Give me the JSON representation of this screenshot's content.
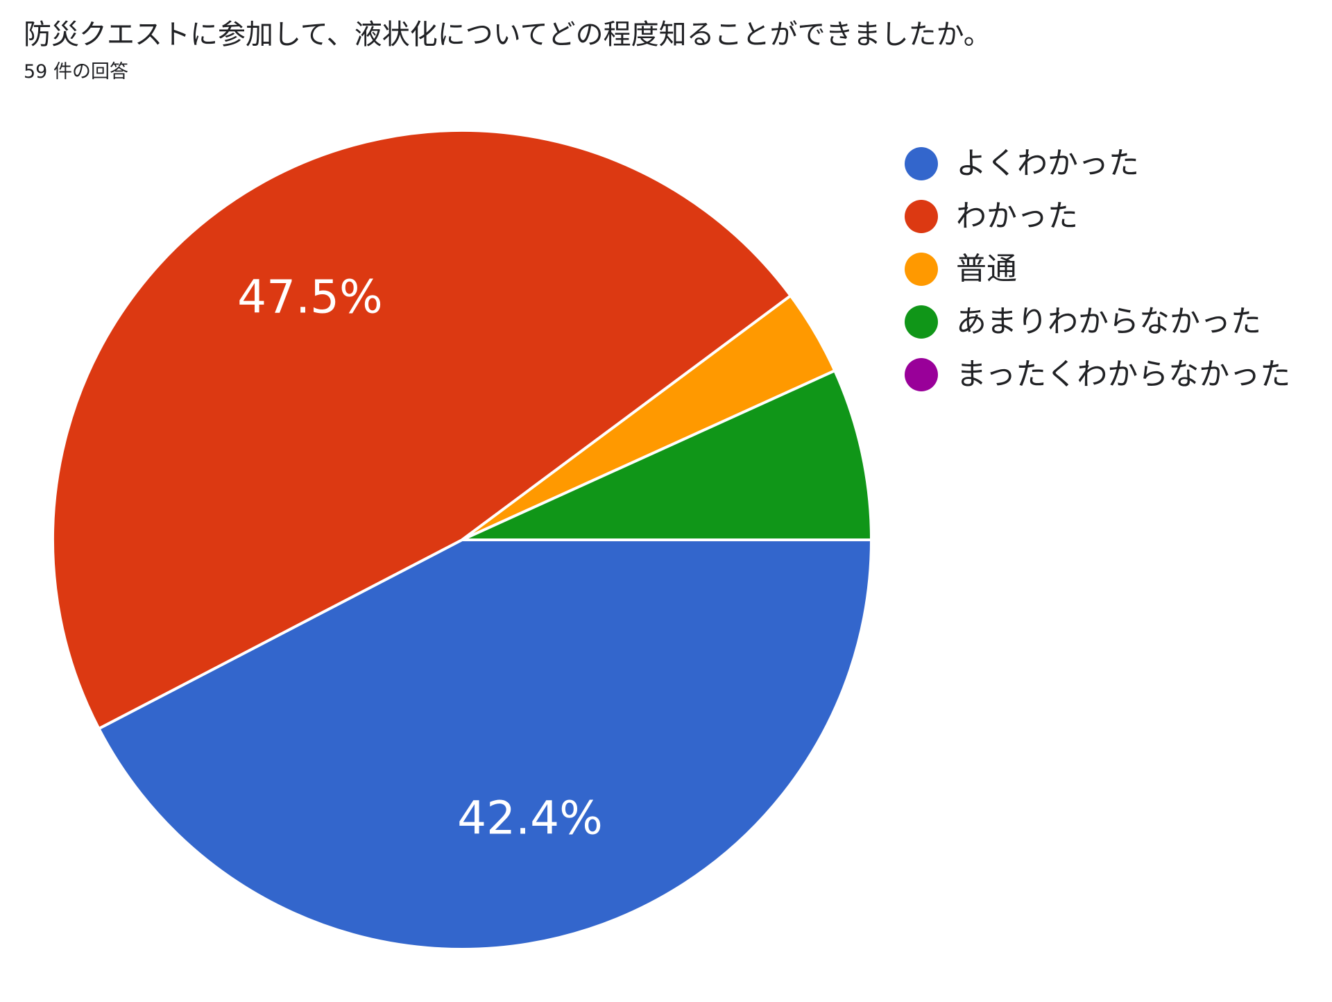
{
  "question": {
    "title": "防災クエストに参加して、液状化についてどの程度知ることができましたか。",
    "response_count": "59 件の回答"
  },
  "chart_data": {
    "type": "pie",
    "title": "防災クエストに参加して、液状化についてどの程度知ることができましたか。",
    "categories": [
      "よくわかった",
      "わかった",
      "普通",
      "あまりわからなかった",
      "まったくわからなかった"
    ],
    "values": [
      25,
      28,
      2,
      4,
      0
    ],
    "percentages": [
      42.4,
      47.5,
      3.4,
      6.8,
      0
    ],
    "data_labels": [
      "42.4%",
      "47.5%",
      "",
      "",
      ""
    ],
    "colors": [
      "#3366cc",
      "#dc3912",
      "#ff9900",
      "#109618",
      "#990099"
    ],
    "legend_position": "right",
    "start_angle_deg": 90
  }
}
